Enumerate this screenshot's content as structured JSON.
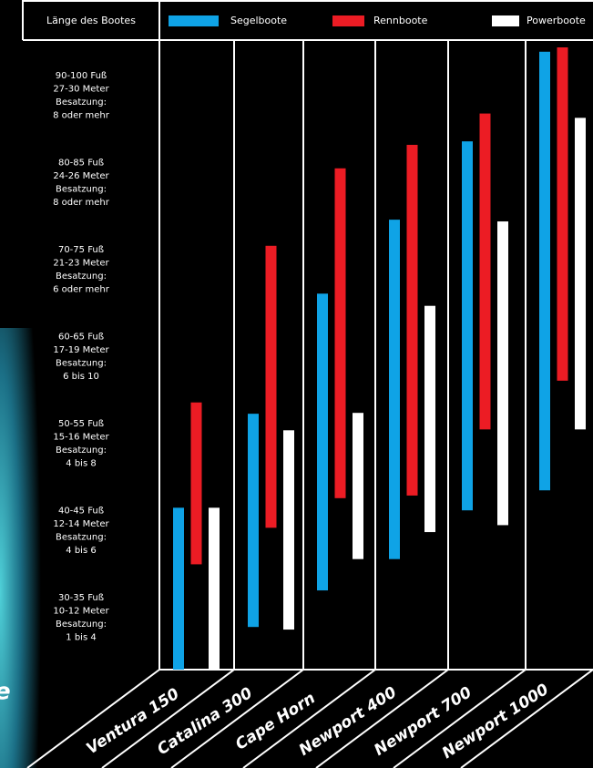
{
  "chart_data": {
    "type": "range-bar",
    "y_axis_label": "Länge des Bootes",
    "side_fragment": "e",
    "categories": [
      "Ventura 150",
      "Catalina 300",
      "Cape Horn",
      "Newport 400",
      "Newport 700",
      "Newport 1000"
    ],
    "series": [
      {
        "name": "Segelboote",
        "color": "#0fa3e6",
        "values": [
          [
            26.5,
            45.1
          ],
          [
            31.4,
            55.9
          ],
          [
            35.6,
            69.7
          ],
          [
            39.2,
            78.2
          ],
          [
            44.8,
            87.2
          ],
          [
            47.1,
            97.5
          ]
        ]
      },
      {
        "name": "Rennboote",
        "color": "#ec1c24",
        "values": [
          [
            38.6,
            57.2
          ],
          [
            42.8,
            75.2
          ],
          [
            46.2,
            84.1
          ],
          [
            46.5,
            86.8
          ],
          [
            54.1,
            90.4
          ],
          [
            59.7,
            98
          ]
        ]
      },
      {
        "name": "Powerboote",
        "color": "#ffffff",
        "values": [
          [
            26.5,
            45.1
          ],
          [
            31.1,
            54.0
          ],
          [
            39.2,
            56.0
          ],
          [
            42.3,
            68.3
          ],
          [
            43.1,
            78.0
          ],
          [
            54.1,
            89.9
          ]
        ]
      }
    ],
    "ylim": [
      26.5,
      98
    ],
    "yticks": [
      {
        "value": 92.5,
        "label": [
          "90-100 Fuß",
          "27-30 Meter",
          "Besatzung:",
          "8 oder mehr"
        ]
      },
      {
        "value": 82.5,
        "label": [
          "80-85 Fuß",
          "24-26 Meter",
          "Besatzung:",
          "8 oder mehr"
        ]
      },
      {
        "value": 72.5,
        "label": [
          "70-75 Fuß",
          "21-23 Meter",
          "Besatzung:",
          "6 oder mehr"
        ]
      },
      {
        "value": 62.5,
        "label": [
          "60-65 Fuß",
          "17-19 Meter",
          "Besatzung:",
          "6 bis 10"
        ]
      },
      {
        "value": 52.5,
        "label": [
          "50-55 Fuß",
          "15-16 Meter",
          "Besatzung:",
          "4 bis 8"
        ]
      },
      {
        "value": 42.5,
        "label": [
          "40-45 Fuß",
          "12-14 Meter",
          "Besatzung:",
          "4 bis 6"
        ]
      },
      {
        "value": 32.5,
        "label": [
          "30-35 Fuß",
          "10-12 Meter",
          "Besatzung:",
          "1 bis 4"
        ]
      }
    ]
  }
}
